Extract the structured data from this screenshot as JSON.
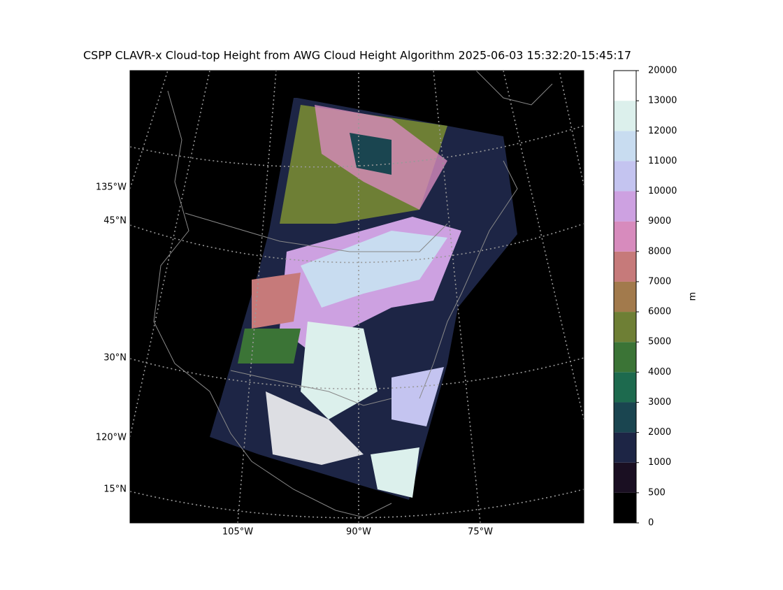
{
  "title": "CSPP CLAVR-x Cloud-top Height from AWG Cloud Height Algorithm 2025-06-03 15:32:20-15:45:17",
  "map": {
    "left_labels": [
      "135°W",
      "45°N",
      "30°N",
      "120°W",
      "15°N"
    ],
    "bottom_labels": [
      "105°W",
      "90°W",
      "75°W"
    ]
  },
  "colorbar": {
    "label": "m",
    "boundaries": [
      0,
      500,
      1000,
      2000,
      3000,
      4000,
      5000,
      6000,
      7000,
      8000,
      9000,
      10000,
      11000,
      12000,
      13000,
      20000
    ],
    "colors": [
      "#000000",
      "#1a0f22",
      "#1d2545",
      "#1a4550",
      "#1d6a4e",
      "#3b7436",
      "#6e7f35",
      "#a27a4c",
      "#c67a7a",
      "#d78bbd",
      "#cda1e1",
      "#c4c4f0",
      "#c8dcf0",
      "#dcf0ec",
      "#ffffff"
    ]
  }
}
